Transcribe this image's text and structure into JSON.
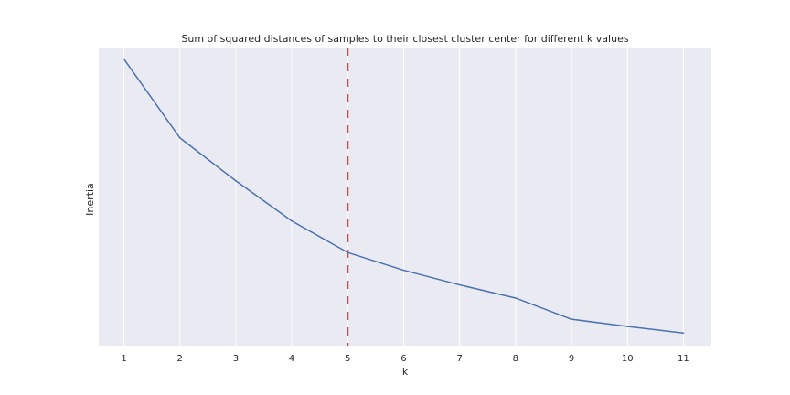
{
  "chart_data": {
    "type": "line",
    "title": "Sum of squared distances of samples to their closest cluster center for different k values",
    "xlabel": "k",
    "ylabel": "Inertia",
    "x": [
      1,
      2,
      3,
      4,
      5,
      6,
      7,
      8,
      9,
      10,
      11
    ],
    "series": [
      {
        "values": [
          100,
          72.5,
          57.5,
          43.5,
          32.5,
          26.3,
          21.2,
          16.6,
          9.2,
          6.7,
          4.4
        ]
      }
    ],
    "xlim": [
      0.55,
      11.5
    ],
    "ylim": [
      0,
      104
    ],
    "y_ticks_shown": false,
    "grid": true,
    "vline": {
      "x": 5,
      "color": "#c44e52",
      "style": "dashed"
    },
    "colors": {
      "line": "#4c72b0",
      "background": "#eaeaf2",
      "grid": "#ffffff"
    }
  }
}
